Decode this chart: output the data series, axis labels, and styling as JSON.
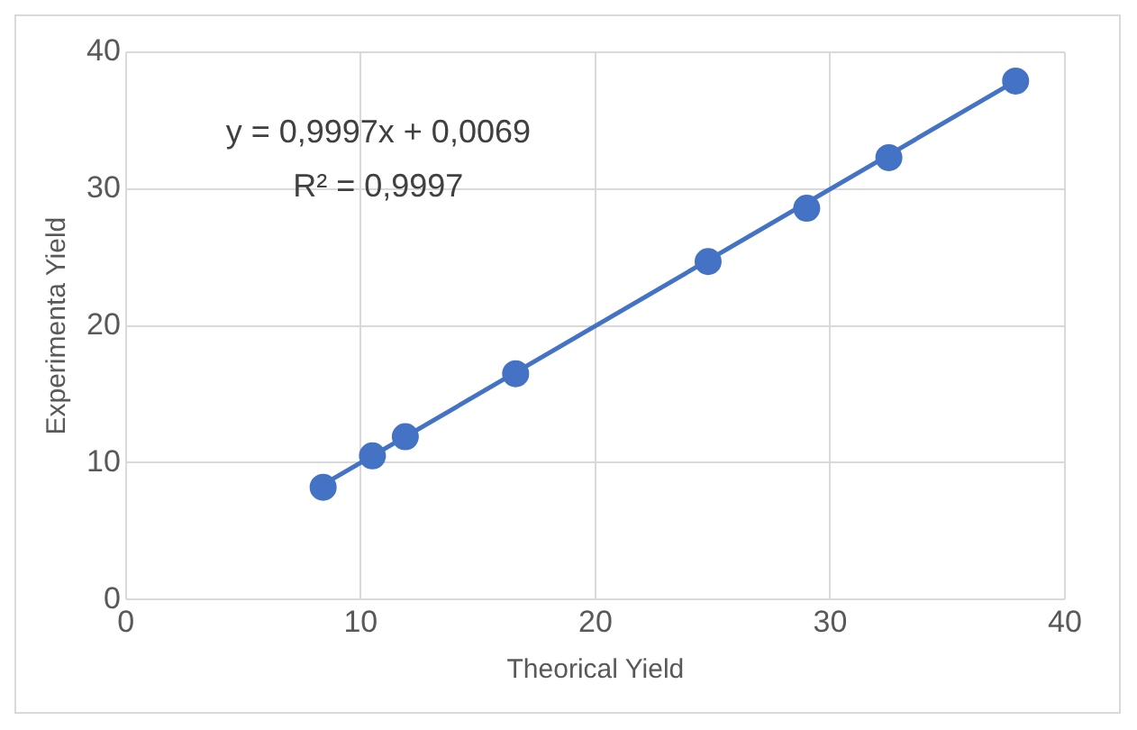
{
  "chart_data": {
    "type": "scatter",
    "xlabel": "Theorical Yield",
    "ylabel": "Experimenta Yield",
    "x": [
      8.4,
      10.5,
      11.9,
      16.6,
      24.8,
      29.0,
      32.5,
      37.9
    ],
    "series": [
      {
        "color": "#4472c4",
        "marker": "circle",
        "values": [
          8.2,
          10.5,
          11.9,
          16.5,
          24.7,
          28.6,
          32.3,
          37.9
        ]
      },
      {
        "type": "line",
        "color": "#4472c4",
        "marker": "none",
        "x": [
          8.4,
          37.9
        ],
        "values": [
          8.4,
          37.9
        ]
      }
    ],
    "annotations": [
      "y = 0,9997x + 0,0069",
      "R² = 0,9997"
    ],
    "xlim": [
      0,
      40
    ],
    "ylim": [
      0,
      40
    ],
    "xticks": [
      0,
      10,
      20,
      30,
      40
    ],
    "yticks": [
      0,
      10,
      20,
      30,
      40
    ],
    "grid": true,
    "legend": false
  }
}
